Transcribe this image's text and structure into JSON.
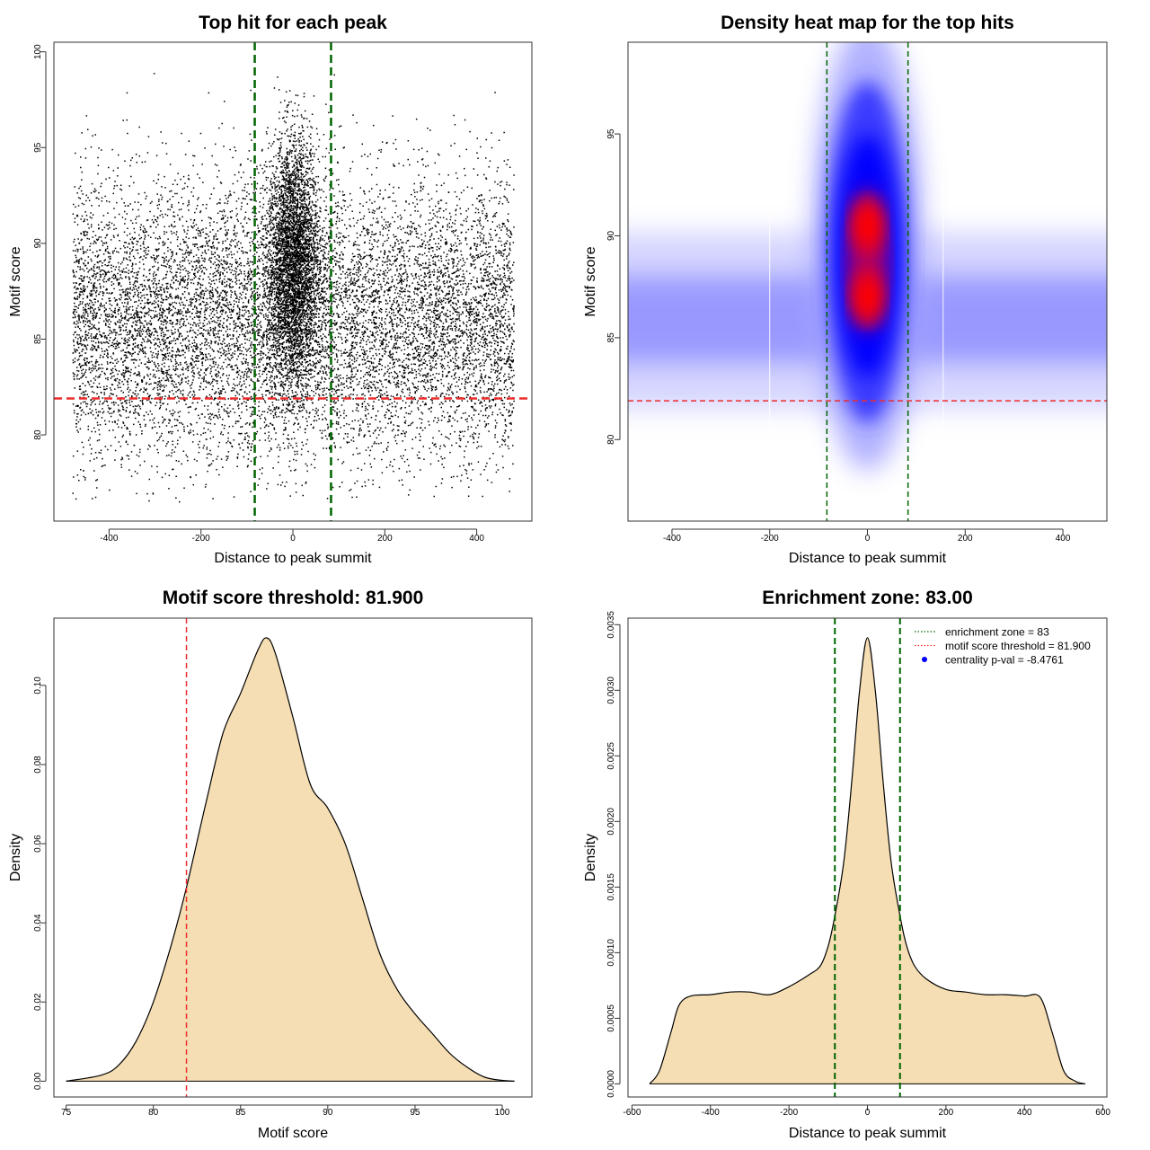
{
  "colors": {
    "points": "#000000",
    "enrichment_line": "#006400",
    "threshold_line": "#ee2c2c",
    "density_fill": "#f5deb3",
    "heat_low": "#ffffff",
    "heat_mid": "#0000ff",
    "heat_high": "#ff0000",
    "legend_dot": "#0000ff"
  },
  "chart_data": [
    {
      "type": "scatter",
      "title": "Top hit for each peak",
      "xlabel": "Distance to peak summit",
      "ylabel": "Motif score",
      "xlim": [
        -520,
        520
      ],
      "ylim": [
        75.5,
        100.5
      ],
      "xticks": [
        -400,
        -200,
        0,
        200,
        400
      ],
      "yticks": [
        80,
        85,
        90,
        95,
        100
      ],
      "grid": false,
      "point_x_range": [
        -480,
        480
      ],
      "point_y_range": [
        76.5,
        99.5
      ],
      "background_score_center": 86,
      "central_score_center": 89,
      "vlines": [
        -83,
        83
      ],
      "hline": 81.9
    },
    {
      "type": "heatmap",
      "title": "Density heat map for the top hits",
      "xlabel": "Distance to peak summit",
      "ylabel": "Motif score",
      "xlim": [
        -490,
        490
      ],
      "ylim": [
        76,
        99.5
      ],
      "xticks": [
        -400,
        -200,
        0,
        200,
        400
      ],
      "yticks": [
        80,
        85,
        90,
        95
      ],
      "grid": false,
      "density_peaks": [
        {
          "x": 0,
          "y": 87,
          "level": "high"
        },
        {
          "x": 0,
          "y": 90.5,
          "level": "high"
        }
      ],
      "vlines": [
        -83,
        83
      ],
      "hline": 81.9
    },
    {
      "type": "area",
      "title": "Motif score threshold: 81.900",
      "xlabel": "Motif score",
      "ylabel": "Density",
      "xlim": [
        74.3,
        101.7
      ],
      "ylim": [
        -0.004,
        0.117
      ],
      "xticks": [
        75,
        80,
        85,
        90,
        95,
        100
      ],
      "yticks": [
        0,
        0.02,
        0.04,
        0.06,
        0.08,
        0.1
      ],
      "ytick_labels": [
        "0.00",
        "0.02",
        "0.04",
        "0.06",
        "0.08",
        "0.10"
      ],
      "grid": false,
      "x": [
        75,
        77,
        78,
        79,
        80,
        81,
        81.9,
        83,
        84,
        85,
        86,
        86.5,
        87,
        88,
        89,
        90,
        91,
        92,
        93,
        94,
        95,
        96,
        97,
        98,
        99,
        100,
        100.7
      ],
      "y": [
        0,
        0.0015,
        0.004,
        0.01,
        0.02,
        0.034,
        0.049,
        0.07,
        0.088,
        0.098,
        0.109,
        0.112,
        0.108,
        0.092,
        0.075,
        0.069,
        0.06,
        0.046,
        0.032,
        0.023,
        0.017,
        0.012,
        0.007,
        0.0035,
        0.001,
        0.0002,
        0
      ],
      "vline": 81.9
    },
    {
      "type": "area",
      "title": "Enrichment zone: 83.00",
      "xlabel": "Distance to peak summit",
      "ylabel": "Density",
      "xlim": [
        -610,
        610
      ],
      "ylim": [
        -0.0001,
        0.00355
      ],
      "xticks": [
        -600,
        -400,
        -200,
        0,
        200,
        400,
        600
      ],
      "yticks": [
        0,
        0.0005,
        0.001,
        0.0015,
        0.002,
        0.0025,
        0.003,
        0.0035
      ],
      "ytick_labels": [
        "0.0000",
        "0.0005",
        "0.0010",
        "0.0015",
        "0.0020",
        "0.0025",
        "0.0030",
        "0.0035"
      ],
      "grid": false,
      "x": [
        -555,
        -530,
        -500,
        -480,
        -450,
        -400,
        -350,
        -300,
        -250,
        -200,
        -150,
        -120,
        -100,
        -83,
        -60,
        -40,
        -20,
        0,
        20,
        40,
        60,
        83,
        100,
        120,
        150,
        200,
        250,
        300,
        350,
        400,
        440,
        470,
        500,
        530,
        555
      ],
      "y": [
        0,
        0.0001,
        0.0004,
        0.0006,
        0.00067,
        0.00068,
        0.0007,
        0.0007,
        0.00068,
        0.00074,
        0.00083,
        0.0009,
        0.00105,
        0.00128,
        0.0017,
        0.0023,
        0.003,
        0.0034,
        0.003,
        0.0023,
        0.0017,
        0.00128,
        0.00105,
        0.0009,
        0.0008,
        0.00072,
        0.0007,
        0.00068,
        0.00068,
        0.00067,
        0.00066,
        0.0004,
        0.0001,
        2e-05,
        0
      ],
      "vlines": [
        -83,
        83
      ],
      "legend_position": "top-right",
      "legend": [
        {
          "label": "enrichment zone = 83",
          "style": "dotted",
          "color": "#006400"
        },
        {
          "label": "motif score threshold = 81.900",
          "style": "dotted",
          "color": "#ee2c2c"
        },
        {
          "label": "centrality p-val = -8.4761",
          "style": "dot",
          "color": "#0000ff"
        }
      ]
    }
  ]
}
